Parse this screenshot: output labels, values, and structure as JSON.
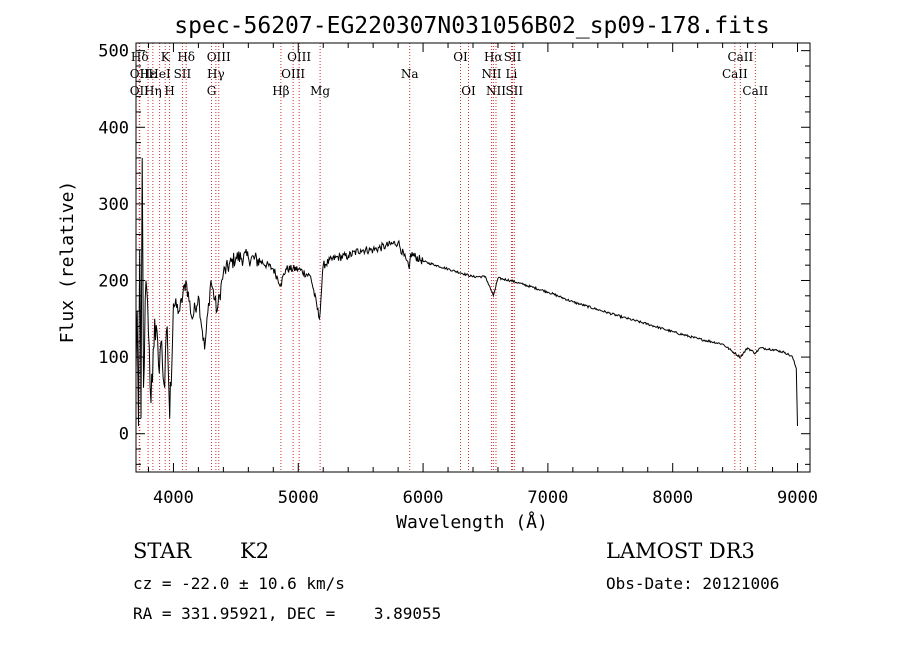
{
  "chart_data": {
    "type": "line",
    "title": "spec-56207-EG220307N031056B02_sp09-178.fits",
    "xlabel": "Wavelength (Å)",
    "ylabel": "Flux (relative)",
    "xlim": [
      3700,
      9100
    ],
    "ylim": [
      -50,
      510
    ],
    "xticks": [
      4000,
      5000,
      6000,
      7000,
      8000,
      9000
    ],
    "yticks": [
      0,
      100,
      200,
      300,
      400,
      500
    ],
    "spectrum_anchor_points": {
      "wavelength": [
        3700,
        3710,
        3720,
        3730,
        3740,
        3750,
        3760,
        3780,
        3800,
        3820,
        3850,
        3880,
        3900,
        3930,
        3950,
        3970,
        4000,
        4050,
        4100,
        4150,
        4200,
        4250,
        4300,
        4350,
        4400,
        4500,
        4600,
        4700,
        4800,
        4860,
        4900,
        5000,
        5100,
        5170,
        5200,
        5300,
        5400,
        5500,
        5600,
        5700,
        5800,
        5890,
        5900,
        6000,
        6100,
        6200,
        6300,
        6400,
        6500,
        6563,
        6600,
        6700,
        6800,
        7000,
        7200,
        7400,
        7600,
        7800,
        8000,
        8200,
        8400,
        8498,
        8542,
        8600,
        8662,
        8700,
        8800,
        8900,
        8960,
        8990,
        9000
      ],
      "flux": [
        80,
        160,
        10,
        240,
        20,
        360,
        60,
        200,
        130,
        40,
        150,
        90,
        120,
        60,
        140,
        20,
        170,
        160,
        200,
        150,
        180,
        110,
        200,
        160,
        210,
        230,
        230,
        225,
        215,
        195,
        215,
        215,
        205,
        150,
        220,
        230,
        232,
        240,
        240,
        245,
        250,
        215,
        235,
        225,
        220,
        215,
        210,
        205,
        205,
        180,
        203,
        200,
        195,
        185,
        172,
        162,
        152,
        143,
        133,
        124,
        117,
        105,
        100,
        112,
        105,
        112,
        110,
        106,
        100,
        85,
        10
      ]
    },
    "line_markers": [
      {
        "label": "Hδ",
        "wavelength": 3730,
        "row": 1
      },
      {
        "label": "OII",
        "wavelength": 3727,
        "row": 2
      },
      {
        "label": "OII",
        "wavelength": 3727,
        "row": 3
      },
      {
        "label": "Hε",
        "wavelength": 3797,
        "row": 2
      },
      {
        "label": "Hη",
        "wavelength": 3835,
        "row": 3
      },
      {
        "label": "K",
        "wavelength": 3934,
        "row": 1
      },
      {
        "label": "HeI",
        "wavelength": 3889,
        "row": 2
      },
      {
        "label": "H",
        "wavelength": 3969,
        "row": 3
      },
      {
        "label": "SII",
        "wavelength": 4072,
        "row": 2
      },
      {
        "label": "Hδ",
        "wavelength": 4102,
        "row": 1
      },
      {
        "label": "OIII",
        "wavelength": 4363,
        "row": 1
      },
      {
        "label": "Hγ",
        "wavelength": 4340,
        "row": 2
      },
      {
        "label": "G",
        "wavelength": 4305,
        "row": 3
      },
      {
        "label": "Hβ",
        "wavelength": 4861,
        "row": 3
      },
      {
        "label": "OIII",
        "wavelength": 5007,
        "row": 1
      },
      {
        "label": "OIII",
        "wavelength": 4959,
        "row": 2
      },
      {
        "label": "Mg",
        "wavelength": 5175,
        "row": 3
      },
      {
        "label": "Na",
        "wavelength": 5893,
        "row": 2
      },
      {
        "label": "OI",
        "wavelength": 6300,
        "row": 1
      },
      {
        "label": "OI",
        "wavelength": 6364,
        "row": 3
      },
      {
        "label": "Hα",
        "wavelength": 6563,
        "row": 1
      },
      {
        "label": "NII",
        "wavelength": 6548,
        "row": 2
      },
      {
        "label": "NII",
        "wavelength": 6584,
        "row": 3
      },
      {
        "label": "SII",
        "wavelength": 6717,
        "row": 1
      },
      {
        "label": "Li",
        "wavelength": 6708,
        "row": 2
      },
      {
        "label": "SII",
        "wavelength": 6731,
        "row": 3
      },
      {
        "label": "CaII",
        "wavelength": 8542,
        "row": 1
      },
      {
        "label": "CaII",
        "wavelength": 8498,
        "row": 2
      },
      {
        "label": "CaII",
        "wavelength": 8662,
        "row": 3
      }
    ],
    "marker_color": "#d03030",
    "line_color": "#000000"
  },
  "info": {
    "object_class": "STAR",
    "subclass": "K2",
    "survey": "LAMOST DR3",
    "cz": "cz = -22.0 ± 10.6 km/s",
    "obs_date": "Obs-Date: 20121006",
    "coords": "RA = 331.95921, DEC =    3.89055"
  }
}
